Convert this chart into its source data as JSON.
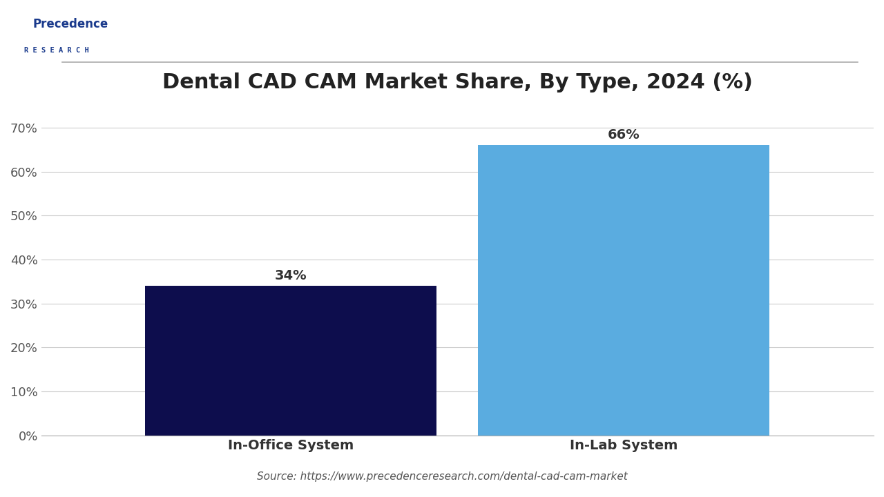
{
  "title": "Dental CAD CAM Market Share, By Type, 2024 (%)",
  "categories": [
    "In-Office System",
    "In-Lab System"
  ],
  "values": [
    34,
    66
  ],
  "bar_colors": [
    "#0d0d4d",
    "#5aace0"
  ],
  "value_labels": [
    "34%",
    "66%"
  ],
  "ylabel_ticks": [
    "0%",
    "10%",
    "20%",
    "30%",
    "40%",
    "50%",
    "60%",
    "70%"
  ],
  "ytick_values": [
    0,
    10,
    20,
    30,
    40,
    50,
    60,
    70
  ],
  "ylim": [
    0,
    75
  ],
  "source_text": "Source: https://www.precedenceresearch.com/dental-cad-cam-market",
  "background_color": "#ffffff",
  "title_fontsize": 22,
  "label_fontsize": 14,
  "tick_fontsize": 13,
  "source_fontsize": 11,
  "bar_width": 0.35,
  "logo_line1": "Precedence",
  "logo_line2": "R E S E A R C H",
  "logo_color": "#1a3a8c"
}
